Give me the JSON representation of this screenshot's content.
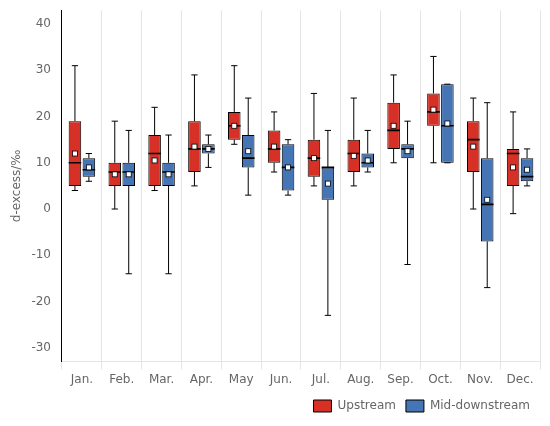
{
  "chart_data": {
    "type": "box",
    "ylabel": "d-excess/‰",
    "categories": [
      "Jan.",
      "Feb.",
      "Mar.",
      "Apr.",
      "May",
      "Jun.",
      "Jul.",
      "Aug.",
      "Sep.",
      "Oct.",
      "Nov.",
      "Dec."
    ],
    "series": [
      {
        "name": "Upstream",
        "color": "#d73027",
        "whislo": [
          4,
          0,
          4,
          5,
          14,
          8,
          5,
          5,
          10,
          10,
          0,
          -1
        ],
        "q1": [
          5,
          5,
          5,
          8,
          15,
          10,
          7,
          8,
          13,
          18,
          8,
          5
        ],
        "med": [
          10,
          8,
          12,
          13,
          18,
          13,
          11,
          12,
          17,
          21,
          15,
          12
        ],
        "q3": [
          19,
          10,
          16,
          19,
          21,
          17,
          15,
          15,
          23,
          25,
          19,
          13
        ],
        "whishi": [
          31,
          19,
          22,
          29,
          31,
          21,
          25,
          24,
          29,
          33,
          24,
          21
        ],
        "mean": [
          12,
          7.5,
          10.5,
          13.5,
          18,
          13.5,
          11,
          11.5,
          18,
          21.5,
          13.5,
          9
        ]
      },
      {
        "name": "Mid-downstream",
        "color": "#4575b4",
        "whislo": [
          6,
          -14,
          -14,
          9,
          3,
          3,
          -23,
          8,
          -12,
          10,
          -17,
          5
        ],
        "q1": [
          7,
          5,
          5,
          12,
          9,
          4,
          2,
          9,
          11,
          10,
          -7,
          6
        ],
        "med": [
          8.5,
          8,
          8,
          13,
          11,
          9,
          9,
          10,
          13,
          18,
          1,
          7
        ],
        "q3": [
          11,
          10,
          10,
          14,
          16,
          14,
          9,
          12,
          14,
          27,
          11,
          11
        ],
        "whishi": [
          12,
          17,
          16,
          16,
          24,
          15,
          17,
          17,
          19,
          27,
          23,
          13
        ],
        "mean": [
          9,
          7.5,
          7.5,
          13,
          12.5,
          9,
          5.5,
          10.5,
          12.5,
          18.5,
          2,
          8.5
        ]
      }
    ],
    "ylim": [
      -33,
      43
    ],
    "yticks": [
      -30,
      -20,
      -10,
      0,
      10,
      20,
      30,
      40
    ],
    "grid": "x",
    "legend": "lower right"
  }
}
